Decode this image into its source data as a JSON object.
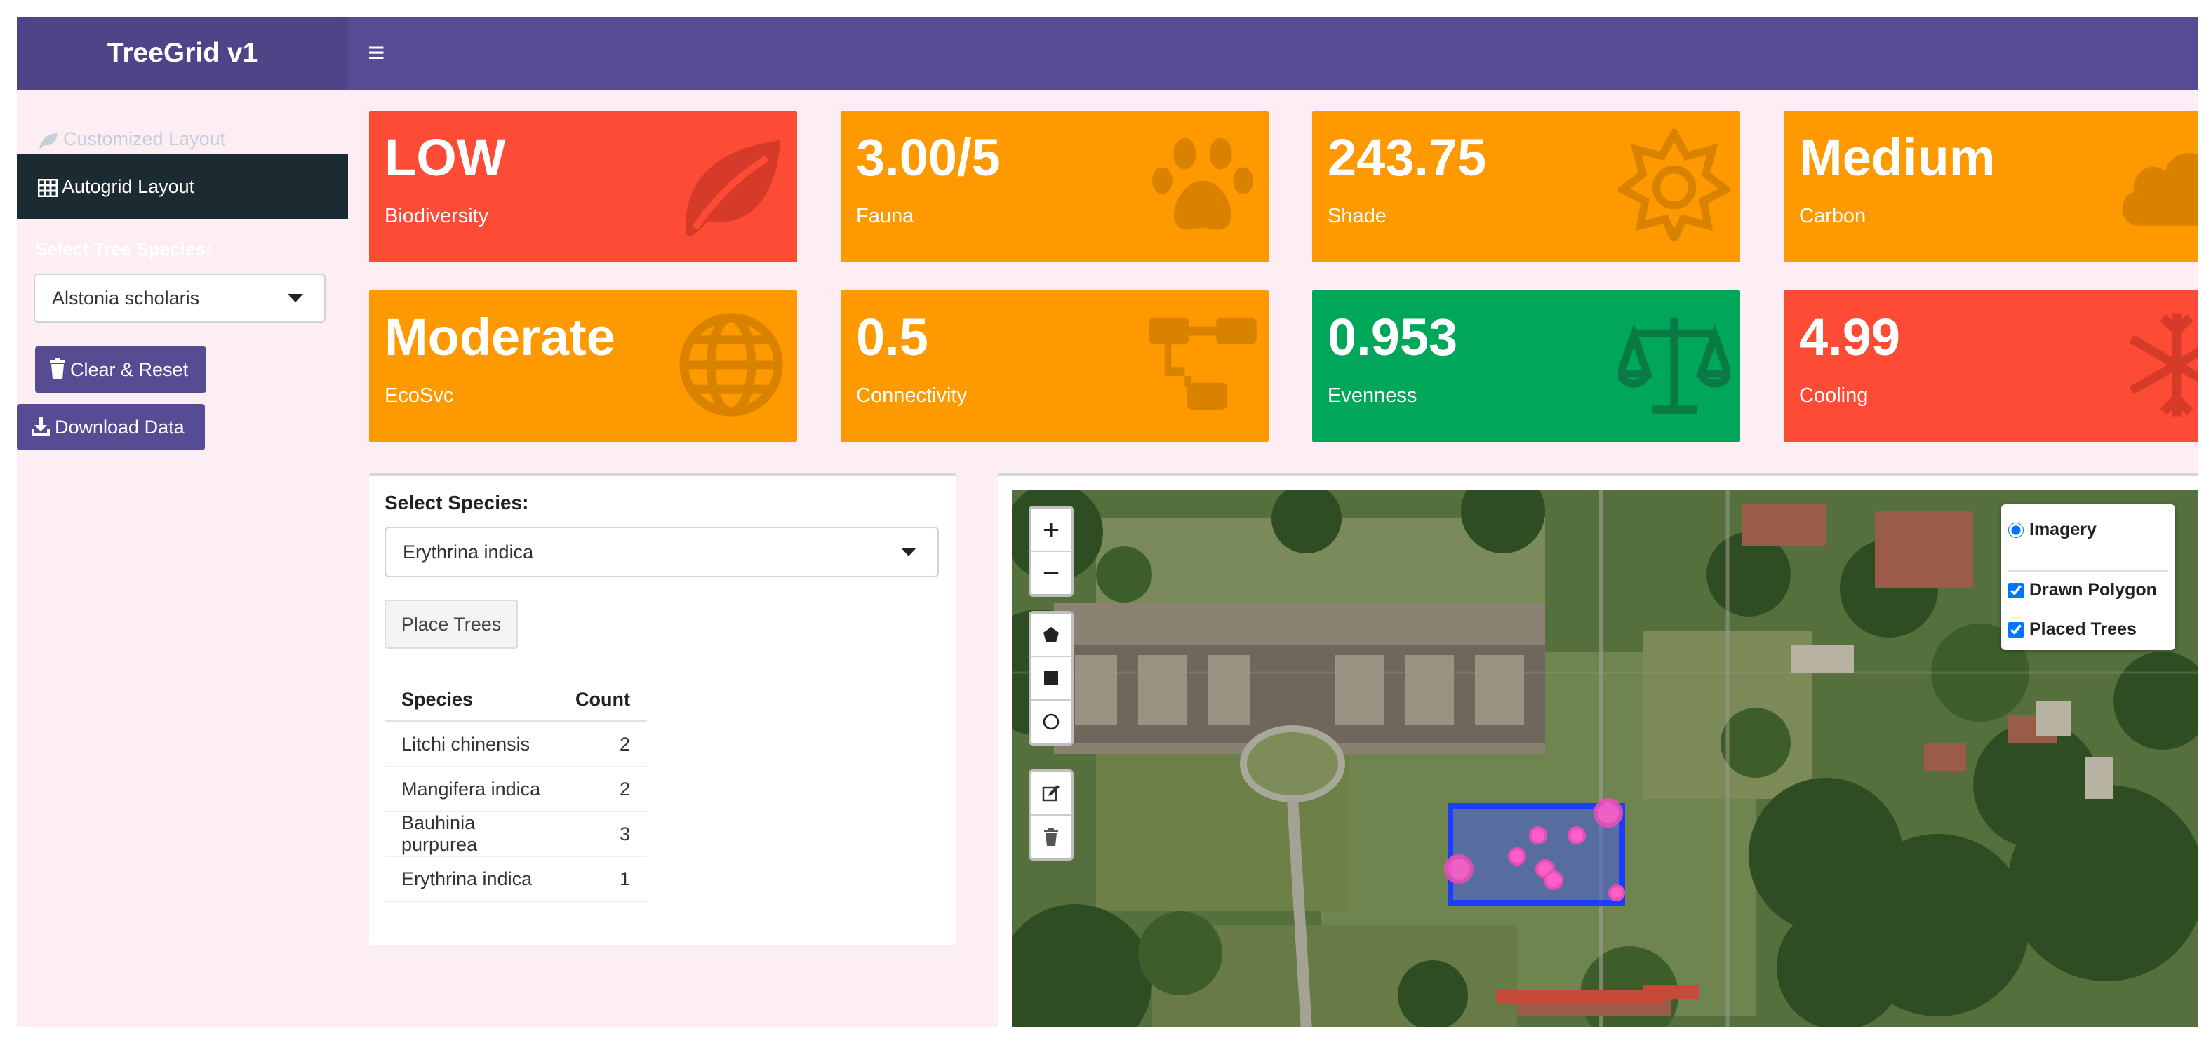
{
  "app": {
    "title": "TreeGrid v1"
  },
  "sidebar": {
    "customized_label": "Customized Layout",
    "autogrid_label": "Autogrid Layout",
    "select_label": "Select Tree Species:",
    "selected_species": "Alstonia scholaris",
    "clear_label": "Clear & Reset",
    "download_label": "Download Data"
  },
  "cards": [
    {
      "value": "LOW",
      "label": "Biodiversity",
      "color": "#fe4b36",
      "icon": "leaf-icon"
    },
    {
      "value": "3.00/5",
      "label": "Fauna",
      "color": "#fe9900",
      "icon": "paw-icon"
    },
    {
      "value": "243.75",
      "label": "Shade",
      "color": "#fe9900",
      "icon": "sun-icon"
    },
    {
      "value": "Medium",
      "label": "Carbon",
      "color": "#fe9900",
      "icon": "cloud-icon"
    },
    {
      "value": "Moderate",
      "label": "EcoSvc",
      "color": "#fe9900",
      "icon": "globe-icon"
    },
    {
      "value": "0.5",
      "label": "Connectivity",
      "color": "#fe9900",
      "icon": "network-icon"
    },
    {
      "value": "0.953",
      "label": "Evenness",
      "color": "#00a65a",
      "icon": "balance-scale-icon"
    },
    {
      "value": "4.99",
      "label": "Cooling",
      "color": "#fe4b36",
      "icon": "snowflake-icon"
    }
  ],
  "species_panel": {
    "label": "Select Species:",
    "selected": "Erythrina indica",
    "place_button": "Place Trees",
    "table": {
      "headers": [
        "Species",
        "Count"
      ],
      "rows": [
        {
          "species": "Litchi chinensis",
          "count": "2"
        },
        {
          "species": "Mangifera indica",
          "count": "2"
        },
        {
          "species": "Bauhinia purpurea",
          "count": "3"
        },
        {
          "species": "Erythrina indica",
          "count": "1"
        }
      ]
    }
  },
  "map": {
    "zoom_in": "+",
    "zoom_out": "−",
    "layers": {
      "base": "Imagery",
      "overlays": [
        {
          "label": "Drawn Polygon",
          "checked": true
        },
        {
          "label": "Placed Trees",
          "checked": true
        }
      ]
    },
    "polygon_color": "#1e3cff",
    "tree_marker_color": "#ff5fc8"
  }
}
